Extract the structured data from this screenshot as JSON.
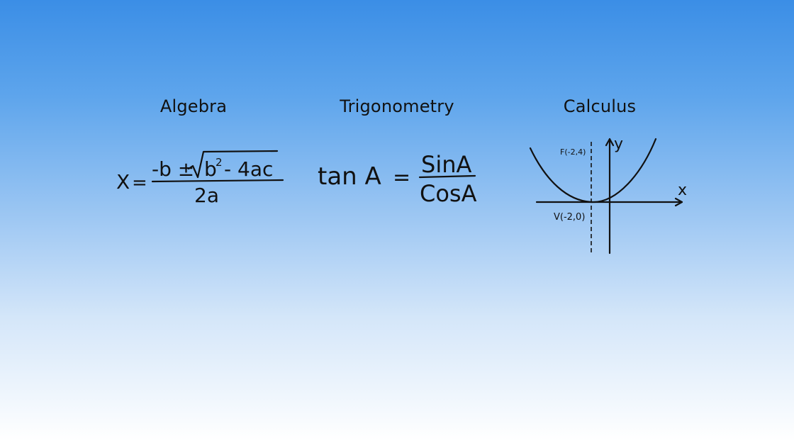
{
  "sections": {
    "algebra": {
      "heading": "Algebra",
      "formula": {
        "lhs": "X",
        "equals": "=",
        "numerator_prefix": "-b ±",
        "radicand_base": "b",
        "radicand_exponent": "2",
        "radicand_rest": "- 4ac",
        "denominator": "2a"
      }
    },
    "trigonometry": {
      "heading": "Trigonometry",
      "formula": {
        "lhs": "tan A",
        "equals": "=",
        "numerator": "SinA",
        "denominator": "CosA"
      }
    },
    "calculus": {
      "heading": "Calculus",
      "graph": {
        "y_axis_label": "y",
        "x_axis_label": "x",
        "focus_label": "F(-2,4)",
        "vertex_label": "V(-2,0)"
      }
    }
  },
  "colors": {
    "gradient_top": "#3b8ee6",
    "gradient_bottom": "#ffffff",
    "ink": "#111111"
  }
}
